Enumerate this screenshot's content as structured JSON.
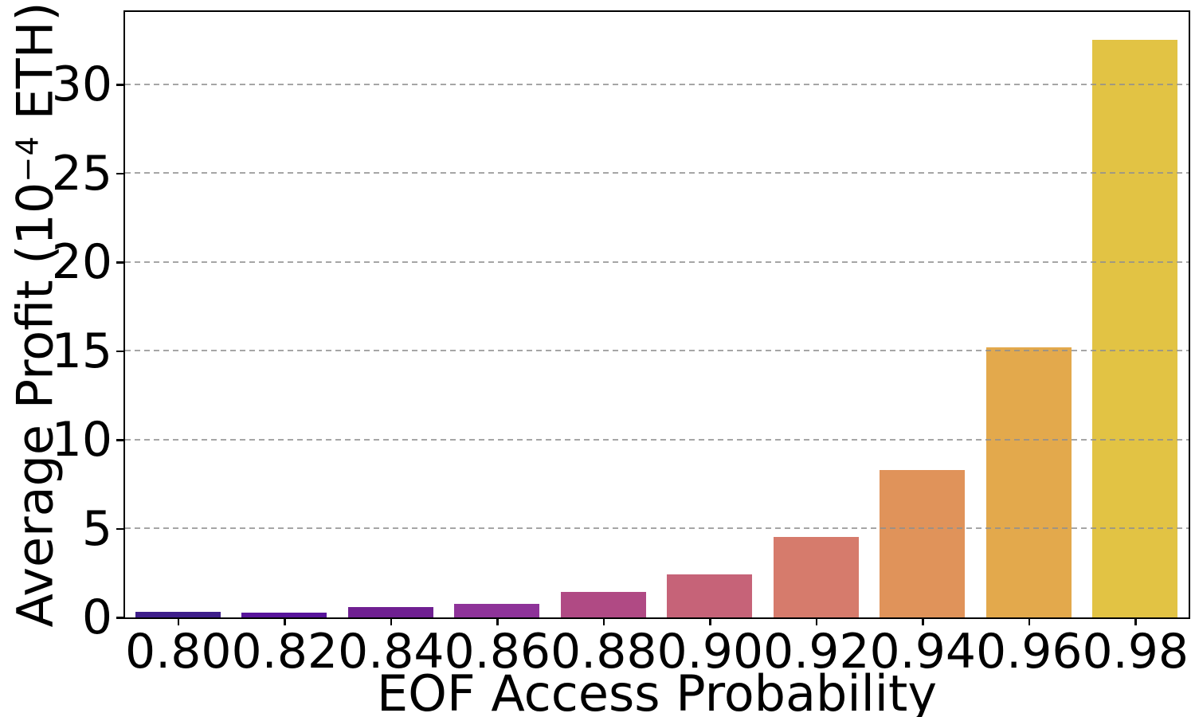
{
  "chart_data": {
    "type": "bar",
    "title": "",
    "xlabel": "EOF Access Probability",
    "ylabel": "Average Profit (10⁻⁴ ETH)",
    "ylabel_parts": {
      "prefix": "Average Profit (10",
      "superscript": "−4",
      "suffix": " ETH)"
    },
    "categories": [
      "0.80",
      "0.82",
      "0.84",
      "0.86",
      "0.88",
      "0.90",
      "0.92",
      "0.94",
      "0.96",
      "0.98"
    ],
    "values": [
      0.3,
      0.25,
      0.55,
      0.75,
      1.4,
      2.4,
      4.5,
      8.3,
      15.2,
      32.5
    ],
    "bar_colors": [
      "#3e1e8a",
      "#58149b",
      "#6f2091",
      "#8e3399",
      "#b04a84",
      "#c66378",
      "#d67b6c",
      "#e0935a",
      "#e3a94c",
      "#e2c344"
    ],
    "yticks": [
      0,
      5,
      10,
      15,
      20,
      25,
      30
    ],
    "ylim": [
      0,
      34.1
    ],
    "xlim_slots": 10,
    "bar_width_fraction": 0.8,
    "grid": "horizontal-dashed",
    "grid_on_top_of_bars": true,
    "legend": "none",
    "colors": {
      "axis": "#000000",
      "text": "#000000",
      "grid": "#8f8f8f",
      "background": "#ffffff"
    }
  }
}
